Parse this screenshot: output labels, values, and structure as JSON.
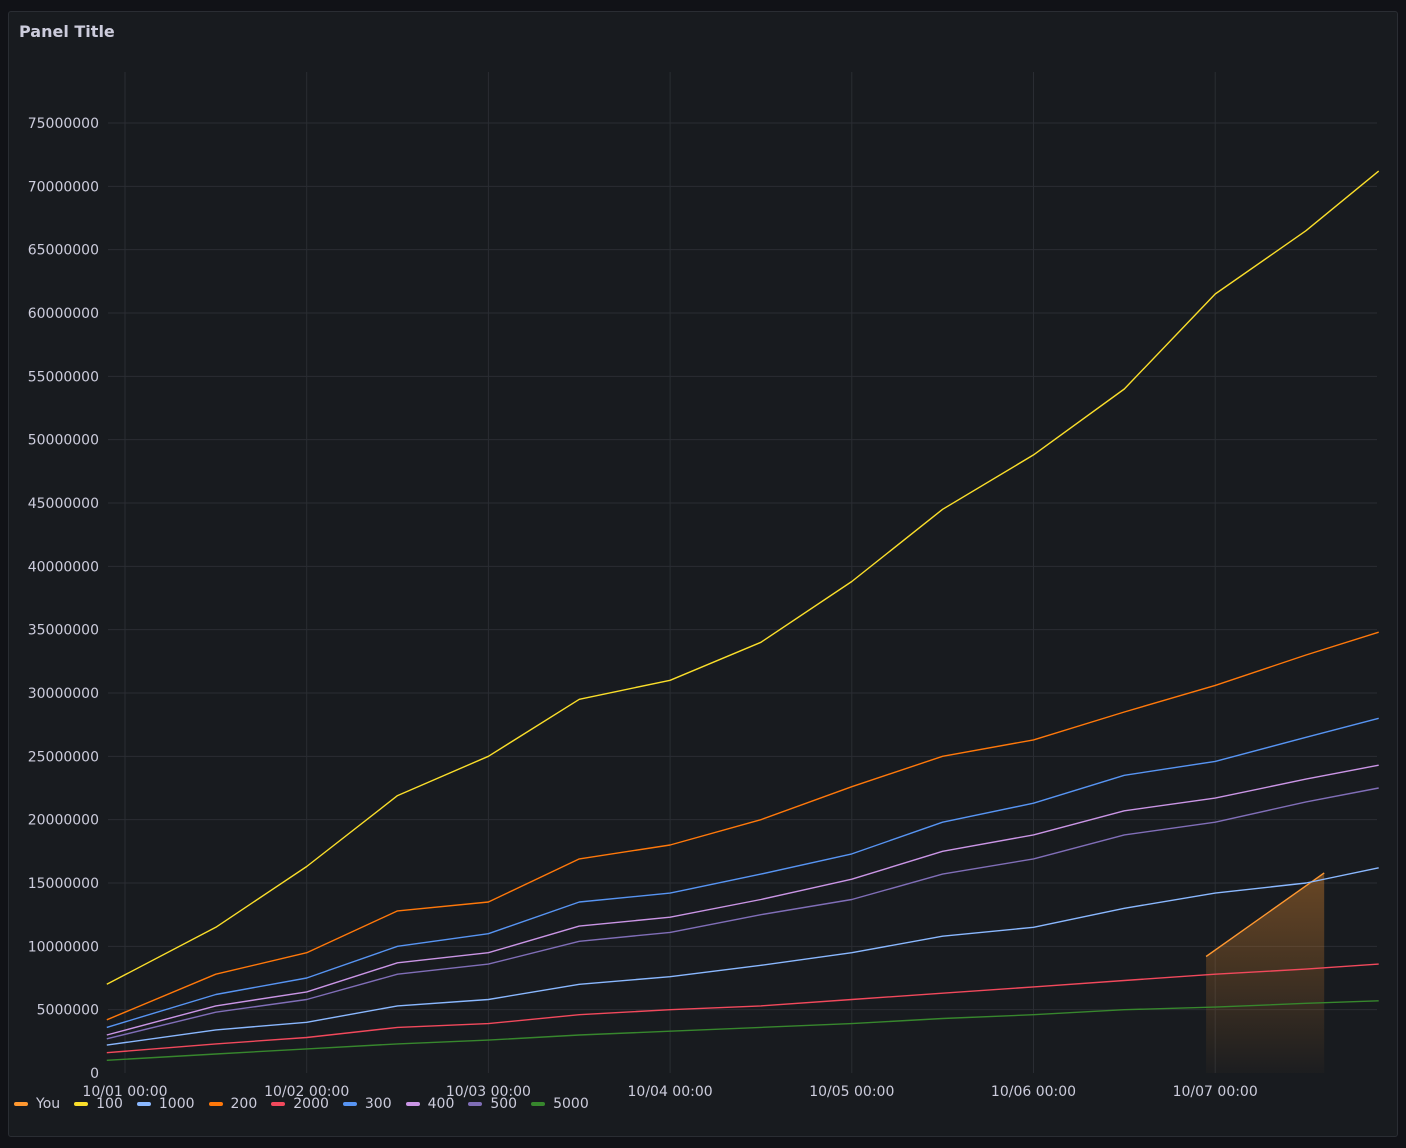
{
  "panel": {
    "title": "Panel Title"
  },
  "chart_data": {
    "type": "line",
    "title": "Panel Title",
    "xlabel": "",
    "ylabel": "",
    "ylim": [
      0,
      75000000
    ],
    "yticks": [
      "0",
      "5000000",
      "10000000",
      "15000000",
      "20000000",
      "25000000",
      "30000000",
      "35000000",
      "40000000",
      "45000000",
      "50000000",
      "55000000",
      "60000000",
      "65000000",
      "70000000",
      "75000000"
    ],
    "xticks": [
      "10/01 00:00",
      "10/02 00:00",
      "10/03 00:00",
      "10/04 00:00",
      "10/05 00:00",
      "10/06 00:00",
      "10/07 00:00"
    ],
    "x": [
      -0.1,
      0.5,
      1.0,
      1.5,
      2.0,
      2.5,
      3.0,
      3.5,
      4.0,
      4.5,
      5.0,
      5.5,
      6.0,
      6.5,
      6.9
    ],
    "grid": true,
    "legend_position": "bottom-left",
    "series": [
      {
        "name": "You",
        "color": "#ff9830",
        "fill": true,
        "x": [
          5.95,
          6.6
        ],
        "values": [
          9200000,
          15800000
        ]
      },
      {
        "name": "100",
        "color": "#fade2a",
        "values": [
          7000000,
          11500000,
          16300000,
          21900000,
          25000000,
          29500000,
          31000000,
          34000000,
          38800000,
          44500000,
          48800000,
          54000000,
          61500000,
          66500000,
          71200000
        ]
      },
      {
        "name": "1000",
        "color": "#8ab8ff",
        "values": [
          2200000,
          3400000,
          4000000,
          5300000,
          5800000,
          7000000,
          7600000,
          8500000,
          9500000,
          10800000,
          11500000,
          13000000,
          14200000,
          15000000,
          16200000
        ]
      },
      {
        "name": "200",
        "color": "#ff780a",
        "values": [
          4200000,
          7800000,
          9500000,
          12800000,
          13500000,
          16900000,
          18000000,
          20000000,
          22600000,
          25000000,
          26300000,
          28500000,
          30600000,
          33000000,
          34800000
        ]
      },
      {
        "name": "2000",
        "color": "#f2495c",
        "values": [
          1600000,
          2300000,
          2800000,
          3600000,
          3900000,
          4600000,
          5000000,
          5300000,
          5800000,
          6300000,
          6800000,
          7300000,
          7800000,
          8200000,
          8600000
        ]
      },
      {
        "name": "300",
        "color": "#5794f2",
        "values": [
          3600000,
          6200000,
          7500000,
          10000000,
          11000000,
          13500000,
          14200000,
          15700000,
          17300000,
          19800000,
          21300000,
          23500000,
          24600000,
          26500000,
          28000000
        ]
      },
      {
        "name": "400",
        "color": "#ca95e5",
        "values": [
          3000000,
          5300000,
          6400000,
          8700000,
          9500000,
          11600000,
          12300000,
          13700000,
          15300000,
          17500000,
          18800000,
          20700000,
          21700000,
          23200000,
          24300000
        ]
      },
      {
        "name": "500",
        "color": "#806eb7",
        "values": [
          2700000,
          4800000,
          5800000,
          7800000,
          8600000,
          10400000,
          11100000,
          12500000,
          13700000,
          15700000,
          16900000,
          18800000,
          19800000,
          21400000,
          22500000
        ]
      },
      {
        "name": "5000",
        "color": "#37872d",
        "values": [
          1000000,
          1500000,
          1900000,
          2300000,
          2600000,
          3000000,
          3300000,
          3600000,
          3900000,
          4300000,
          4600000,
          5000000,
          5200000,
          5500000,
          5700000
        ]
      }
    ]
  }
}
